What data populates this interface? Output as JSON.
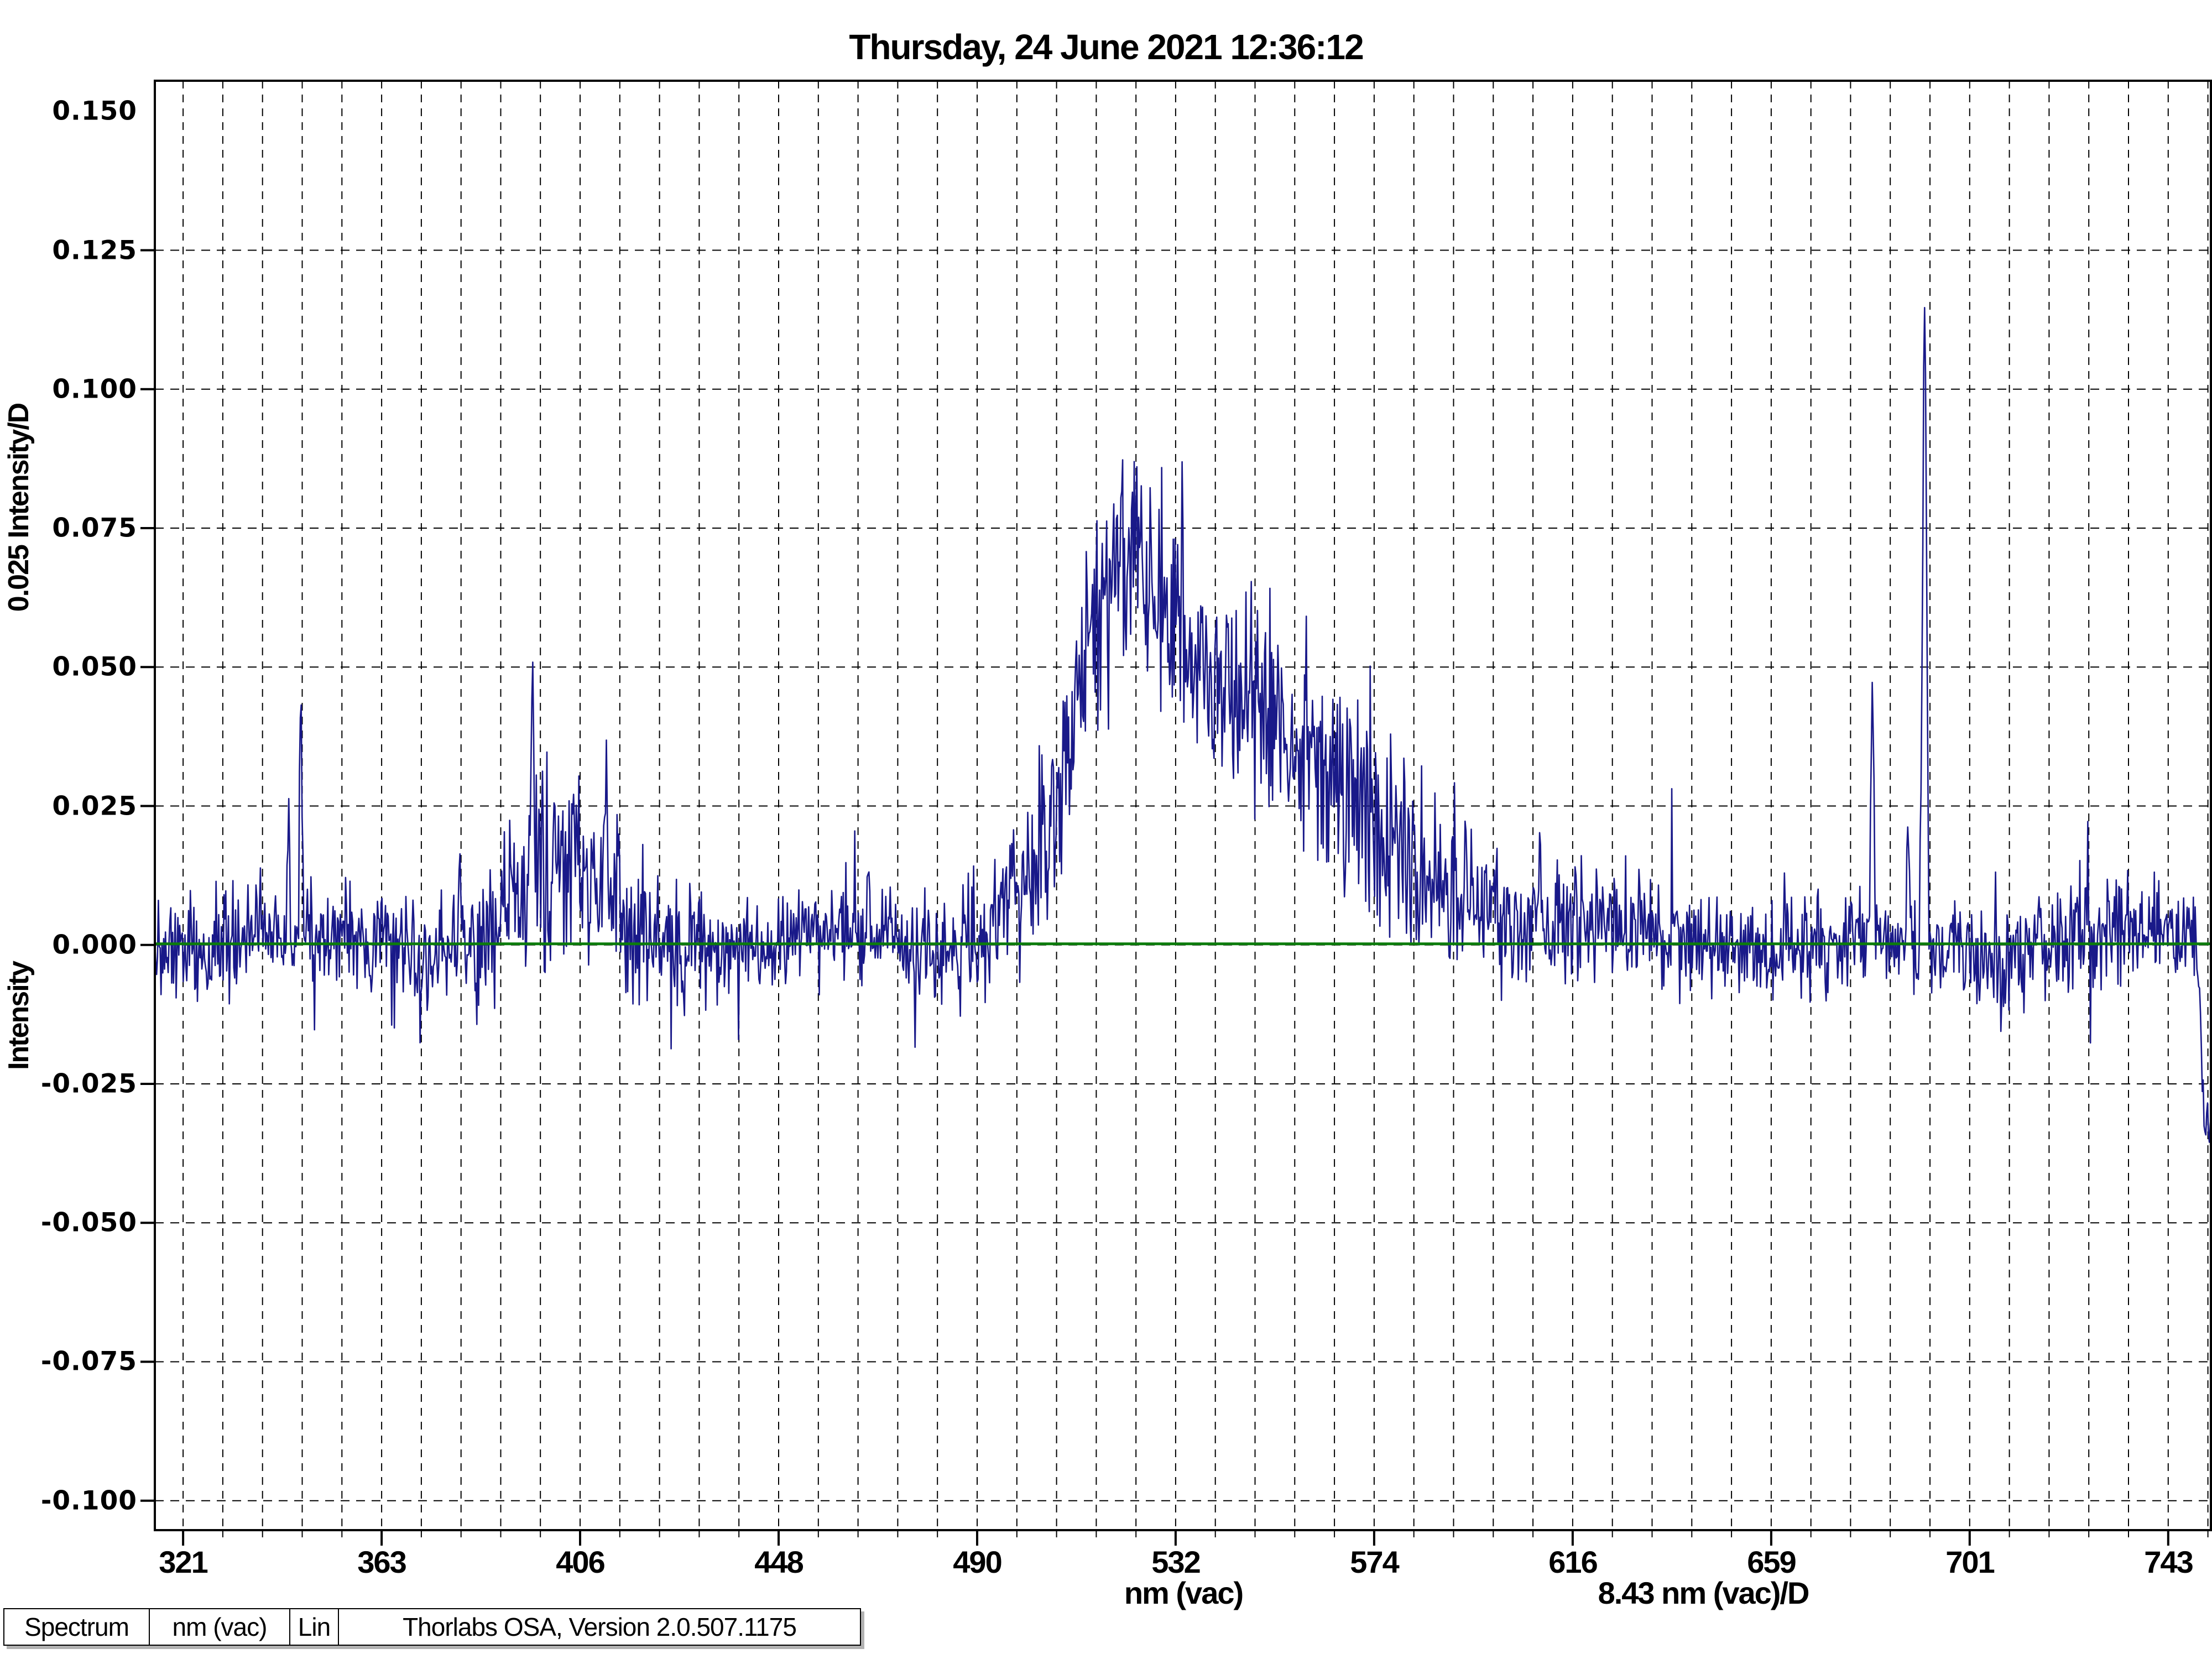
{
  "title": "Thursday, 24 June 2021 12:36:12",
  "y_axis": {
    "title_upper": "0.025 Intensity/D",
    "title_lower": "Intensity",
    "tick_labels": [
      "0.150",
      "0.125",
      "0.100",
      "0.075",
      "0.050",
      "0.025",
      "0.000",
      "-0.025",
      "-0.050",
      "-0.075",
      "-0.100"
    ]
  },
  "x_axis": {
    "unit_label": "nm (vac)",
    "division_label": "8.43 nm (vac)/D",
    "tick_labels": [
      "321",
      "363",
      "406",
      "448",
      "490",
      "532",
      "574",
      "616",
      "659",
      "701",
      "743"
    ]
  },
  "status_bar": {
    "cells": [
      "Spectrum",
      "nm (vac)",
      "Lin",
      "Thorlabs OSA, Version 2.0.507.1175"
    ]
  },
  "colors": {
    "trace": "#191989",
    "zero_line": "#0c7c0c",
    "grid": "#000000",
    "border": "#000000",
    "background": "#ffffff"
  },
  "chart_data": {
    "type": "line",
    "title": "Thursday, 24 June 2021 12:36:12",
    "xlabel": "nm (vac)",
    "ylabel": "Intensity",
    "x_range": [
      315,
      751.8
    ],
    "y_range": [
      -0.1053,
      0.1555
    ],
    "x_major_ticks": [
      321,
      363.15,
      405.3,
      447.45,
      489.6,
      531.75,
      573.9,
      616.05,
      658.2,
      700.35,
      742.5
    ],
    "x_minor_division_nm": 8.43,
    "y_major_ticks": [
      0.15,
      0.125,
      0.1,
      0.075,
      0.05,
      0.025,
      0.0,
      -0.025,
      -0.05,
      -0.075,
      -0.1
    ],
    "y_division": 0.025,
    "grid": "dashed, vertical line every 8.43 nm division, horizontal line every 0.025",
    "legend": "none",
    "zero_reference_line": 0.0,
    "baseline_noise": {
      "mean": -0.0005,
      "sigma": 0.0042,
      "wobble_amp": 0.0015
    },
    "envelope_points": [
      [
        315,
        0.0005
      ],
      [
        335,
        0.0005
      ],
      [
        380,
        0.001
      ],
      [
        386,
        0.004
      ],
      [
        391,
        0.009
      ],
      [
        396,
        0.013
      ],
      [
        401,
        0.016
      ],
      [
        406,
        0.013
      ],
      [
        411,
        0.009
      ],
      [
        417,
        0.005
      ],
      [
        424,
        0.002
      ],
      [
        435,
        0.0
      ],
      [
        460,
        0.0
      ],
      [
        485,
        0.001
      ],
      [
        492,
        0.004
      ],
      [
        499,
        0.011
      ],
      [
        504,
        0.021
      ],
      [
        509,
        0.035
      ],
      [
        513,
        0.05
      ],
      [
        516,
        0.061
      ],
      [
        519,
        0.069
      ],
      [
        522,
        0.071
      ],
      [
        525,
        0.069
      ],
      [
        529,
        0.064
      ],
      [
        534,
        0.059
      ],
      [
        541,
        0.052
      ],
      [
        549,
        0.044
      ],
      [
        557,
        0.036
      ],
      [
        565,
        0.029
      ],
      [
        573,
        0.023
      ],
      [
        581,
        0.017
      ],
      [
        589,
        0.012
      ],
      [
        598,
        0.008
      ],
      [
        608,
        0.005
      ],
      [
        618,
        0.003
      ],
      [
        630,
        0.0015
      ],
      [
        660,
        0.001
      ],
      [
        700,
        0.001
      ],
      [
        751.8,
        0.001
      ]
    ],
    "narrow_spikes": [
      {
        "x": 343.4,
        "height": 0.022,
        "width_nm": 0.35
      },
      {
        "x": 346.0,
        "height": 0.04,
        "width_nm": 0.4
      },
      {
        "x": 379.8,
        "height": 0.016,
        "width_nm": 0.35
      },
      {
        "x": 395.2,
        "height": 0.04,
        "width_nm": 0.4
      },
      {
        "x": 410.8,
        "height": 0.024,
        "width_nm": 0.4
      },
      {
        "x": 466.5,
        "height": 0.013,
        "width_nm": 0.35
      },
      {
        "x": 559.5,
        "height": 0.02,
        "width_nm": 0.5
      },
      {
        "x": 609.0,
        "height": 0.013,
        "width_nm": 0.4
      },
      {
        "x": 679.7,
        "height": 0.047,
        "width_nm": 0.45
      },
      {
        "x": 687.3,
        "height": 0.023,
        "width_nm": 0.4
      },
      {
        "x": 690.8,
        "height": 0.113,
        "width_nm": 0.6
      }
    ],
    "main_peaks_summary": [
      {
        "center_nm": 401,
        "peak_intensity": 0.016,
        "kind": "broad weak band"
      },
      {
        "center_nm": 520,
        "peak_intensity": 0.072,
        "max_spike": 0.095,
        "kind": "broad asymmetric band, slow decay to ~615 nm"
      },
      {
        "center_nm": 690.8,
        "peak_intensity": 0.115,
        "kind": "narrow line"
      },
      {
        "center_nm": 679.7,
        "peak_intensity": 0.049,
        "kind": "narrow line"
      }
    ],
    "end_dip": {
      "x_start": 748.6,
      "x_bottom": 750.2,
      "value": -0.033
    },
    "points_count": 2320
  }
}
